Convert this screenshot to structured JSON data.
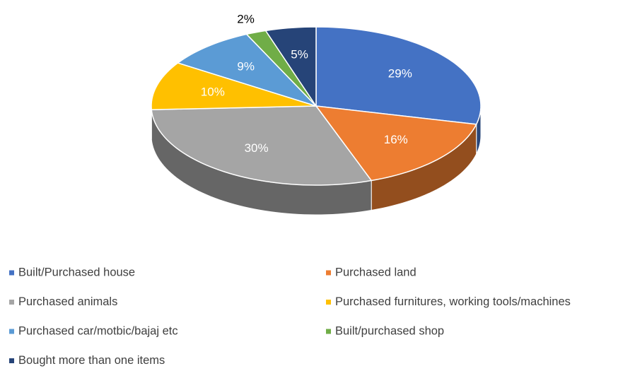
{
  "chart_data": {
    "type": "pie3d",
    "categories": [
      "Built/Purchased house",
      "Purchased land",
      "Purchased animals",
      "Purchased furnitures, working tools/machines",
      "Purchased car/motbic/bajaj etc",
      "Built/purchased shop",
      "Bought more than one items"
    ],
    "values": [
      29,
      16,
      30,
      10,
      9,
      2,
      5
    ],
    "value_labels": [
      "29%",
      "16%",
      "30%",
      "10%",
      "9%",
      "2%",
      "5%"
    ],
    "colors": [
      "#4472c4",
      "#ed7d31",
      "#a5a5a5",
      "#ffc000",
      "#5b9bd5",
      "#70ad47",
      "#264478"
    ],
    "legend": "bottom"
  }
}
